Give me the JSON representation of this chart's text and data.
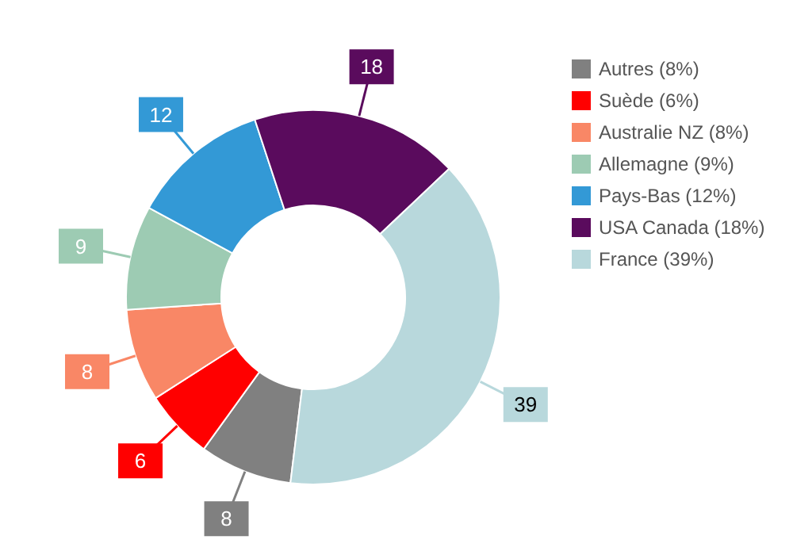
{
  "chart_data": {
    "type": "donut",
    "categories": [
      "Autres (8%)",
      "Suède (6%)",
      "Australie NZ (8%)",
      "Allemagne (9%)",
      "Pays-Bas (12%)",
      "USA Canada (18%)",
      "France (39%)"
    ],
    "values": [
      8,
      6,
      8,
      9,
      12,
      18,
      39
    ],
    "colors": [
      "#808080",
      "#ff0000",
      "#f98766",
      "#9dcbb3",
      "#3399d6",
      "#5a0b5d",
      "#b8d8dc"
    ],
    "data_labels": true,
    "legend": "top right"
  }
}
